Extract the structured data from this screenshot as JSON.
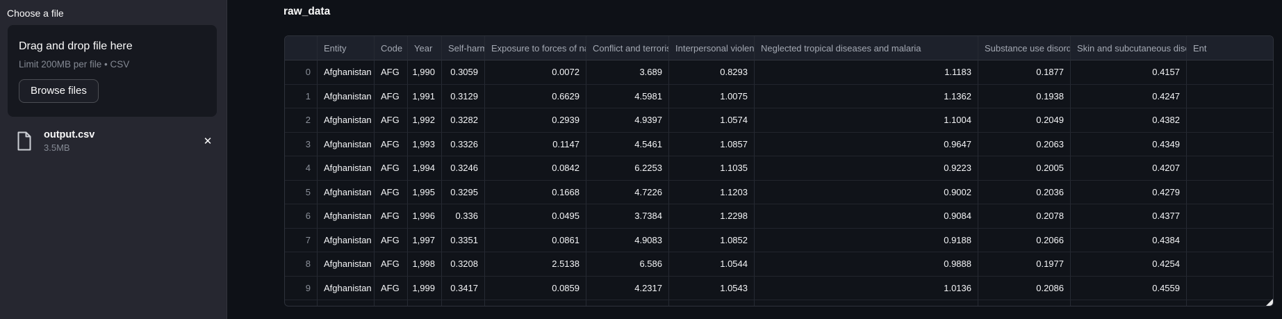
{
  "colors": {
    "app_background": "#0e1117",
    "sidebar_background": "#262730",
    "dropzone_background": "#16181f",
    "table_header_background": "#1d212b",
    "text_primary": "#fafafa",
    "text_secondary": "#848993"
  },
  "sidebar": {
    "uploader_label": "Choose a file",
    "dropzone": {
      "title": "Drag and drop file here",
      "limit_text": "Limit 200MB per file • CSV",
      "browse_button_label": "Browse files"
    },
    "uploaded_file": {
      "name": "output.csv",
      "size": "3.5MB",
      "remove_icon": "✕"
    }
  },
  "main": {
    "title": "raw_data",
    "table": {
      "columns": [
        {
          "label": "",
          "align": "right"
        },
        {
          "label": "Entity",
          "align": "left"
        },
        {
          "label": "Code",
          "align": "left"
        },
        {
          "label": "Year",
          "align": "left"
        },
        {
          "label": "Self-harm",
          "align": "left"
        },
        {
          "label": "Exposure to forces of nature",
          "align": "left"
        },
        {
          "label": "Conflict and terrorism",
          "align": "left"
        },
        {
          "label": "Interpersonal violence",
          "align": "left"
        },
        {
          "label": "Neglected tropical diseases and malaria",
          "align": "left"
        },
        {
          "label": "Substance use disorders",
          "align": "left"
        },
        {
          "label": "Skin and subcutaneous diseases",
          "align": "left"
        },
        {
          "label": "Ent",
          "align": "left"
        }
      ],
      "rows": [
        [
          "0",
          "Afghanistan",
          "AFG",
          "1,990",
          "0.3059",
          "0.0072",
          "3.689",
          "0.8293",
          "1.1183",
          "0.1877",
          "0.4157",
          ""
        ],
        [
          "1",
          "Afghanistan",
          "AFG",
          "1,991",
          "0.3129",
          "0.6629",
          "4.5981",
          "1.0075",
          "1.1362",
          "0.1938",
          "0.4247",
          ""
        ],
        [
          "2",
          "Afghanistan",
          "AFG",
          "1,992",
          "0.3282",
          "0.2939",
          "4.9397",
          "1.0574",
          "1.1004",
          "0.2049",
          "0.4382",
          ""
        ],
        [
          "3",
          "Afghanistan",
          "AFG",
          "1,993",
          "0.3326",
          "0.1147",
          "4.5461",
          "1.0857",
          "0.9647",
          "0.2063",
          "0.4349",
          ""
        ],
        [
          "4",
          "Afghanistan",
          "AFG",
          "1,994",
          "0.3246",
          "0.0842",
          "6.2253",
          "1.1035",
          "0.9223",
          "0.2005",
          "0.4207",
          ""
        ],
        [
          "5",
          "Afghanistan",
          "AFG",
          "1,995",
          "0.3295",
          "0.1668",
          "4.7226",
          "1.1203",
          "0.9002",
          "0.2036",
          "0.4279",
          ""
        ],
        [
          "6",
          "Afghanistan",
          "AFG",
          "1,996",
          "0.336",
          "0.0495",
          "3.7384",
          "1.2298",
          "0.9084",
          "0.2078",
          "0.4377",
          ""
        ],
        [
          "7",
          "Afghanistan",
          "AFG",
          "1,997",
          "0.3351",
          "0.0861",
          "4.9083",
          "1.0852",
          "0.9188",
          "0.2066",
          "0.4384",
          ""
        ],
        [
          "8",
          "Afghanistan",
          "AFG",
          "1,998",
          "0.3208",
          "2.5138",
          "6.586",
          "1.0544",
          "0.9888",
          "0.1977",
          "0.4254",
          ""
        ],
        [
          "9",
          "Afghanistan",
          "AFG",
          "1,999",
          "0.3417",
          "0.0859",
          "4.2317",
          "1.0543",
          "1.0136",
          "0.2086",
          "0.4559",
          ""
        ]
      ]
    }
  }
}
